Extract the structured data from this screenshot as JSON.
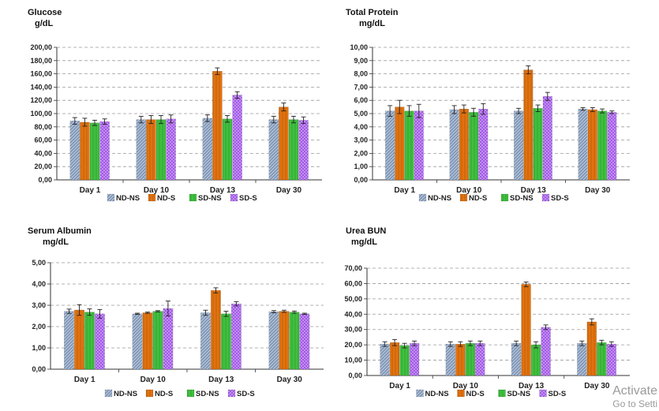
{
  "colors": {
    "ND-NS": "#7f97b8",
    "ND-S": "#e2720f",
    "SD-NS": "#3fc03f",
    "SD-S": "#9d4ee6"
  },
  "legend": [
    "ND-NS",
    "ND-S",
    "SD-NS",
    "SD-S"
  ],
  "chart_data": [
    {
      "type": "bar",
      "title": "Glucose",
      "ylabel": "g/dL",
      "categories": [
        "Day 1",
        "Day 10",
        "Day 13",
        "Day 30"
      ],
      "ylim": [
        0,
        200
      ],
      "yticks": [
        "0,00",
        "20,00",
        "40,00",
        "60,00",
        "80,00",
        "100,00",
        "120,00",
        "140,00",
        "160,00",
        "180,00",
        "200,00"
      ],
      "series": [
        {
          "name": "ND-NS",
          "values": [
            89,
            91,
            93,
            91
          ],
          "errors": [
            5,
            5,
            5,
            5
          ]
        },
        {
          "name": "ND-S",
          "values": [
            87,
            91,
            164,
            110
          ],
          "errors": [
            6,
            6,
            5,
            6
          ]
        },
        {
          "name": "SD-NS",
          "values": [
            86,
            91,
            92,
            91
          ],
          "errors": [
            4,
            6,
            5,
            5
          ]
        },
        {
          "name": "SD-S",
          "values": [
            88,
            92,
            128,
            90
          ],
          "errors": [
            4,
            6,
            5,
            5
          ]
        }
      ],
      "grid": true,
      "legend_position": "bottom"
    },
    {
      "type": "bar",
      "title": "Total Protein",
      "ylabel": "mg/dL",
      "categories": [
        "Day 1",
        "Day 10",
        "Day 13",
        "Day 30"
      ],
      "ylim": [
        0,
        10
      ],
      "yticks": [
        "0,00",
        "1,00",
        "2,00",
        "3,00",
        "4,00",
        "5,00",
        "6,00",
        "7,00",
        "8,00",
        "9,00",
        "10,00"
      ],
      "series": [
        {
          "name": "ND-NS",
          "values": [
            5.2,
            5.3,
            5.2,
            5.35
          ],
          "errors": [
            0.4,
            0.3,
            0.2,
            0.1
          ]
        },
        {
          "name": "ND-S",
          "values": [
            5.5,
            5.35,
            8.3,
            5.3
          ],
          "errors": [
            0.5,
            0.3,
            0.3,
            0.15
          ]
        },
        {
          "name": "SD-NS",
          "values": [
            5.2,
            5.1,
            5.4,
            5.2
          ],
          "errors": [
            0.4,
            0.3,
            0.25,
            0.15
          ]
        },
        {
          "name": "SD-S",
          "values": [
            5.2,
            5.35,
            6.3,
            5.1
          ],
          "errors": [
            0.5,
            0.4,
            0.3,
            0.1
          ]
        }
      ],
      "grid": true,
      "legend_position": "bottom"
    },
    {
      "type": "bar",
      "title": "Serum Albumin",
      "ylabel": "mg/dL",
      "categories": [
        "Day 1",
        "Day 10",
        "Day 13",
        "Day 30"
      ],
      "ylim": [
        0,
        5
      ],
      "yticks": [
        "0,00",
        "1,00",
        "2,00",
        "3,00",
        "4,00",
        "5,00"
      ],
      "series": [
        {
          "name": "ND-NS",
          "values": [
            2.72,
            2.6,
            2.65,
            2.7
          ],
          "errors": [
            0.1,
            0.03,
            0.12,
            0.05
          ]
        },
        {
          "name": "ND-S",
          "values": [
            2.78,
            2.65,
            3.7,
            2.72
          ],
          "errors": [
            0.25,
            0.03,
            0.12,
            0.05
          ]
        },
        {
          "name": "SD-NS",
          "values": [
            2.68,
            2.72,
            2.6,
            2.68
          ],
          "errors": [
            0.15,
            0.03,
            0.12,
            0.05
          ]
        },
        {
          "name": "SD-S",
          "values": [
            2.6,
            2.85,
            3.07,
            2.6
          ],
          "errors": [
            0.2,
            0.35,
            0.1,
            0.03
          ]
        }
      ],
      "grid": true,
      "legend_position": "bottom"
    },
    {
      "type": "bar",
      "title": "Urea BUN",
      "ylabel": "mg/dL",
      "categories": [
        "Day 1",
        "Day 10",
        "Day 13",
        "Day 30"
      ],
      "ylim": [
        0,
        70
      ],
      "yticks": [
        "0,00",
        "10,00",
        "20,00",
        "30,00",
        "40,00",
        "50,00",
        "60,00",
        "70,00"
      ],
      "series": [
        {
          "name": "ND-NS",
          "values": [
            20.5,
            20.5,
            21,
            21
          ],
          "errors": [
            1.5,
            1.5,
            1.5,
            1.5
          ]
        },
        {
          "name": "ND-S",
          "values": [
            21.5,
            20.5,
            59.5,
            35
          ],
          "errors": [
            2,
            1.5,
            1.5,
            2
          ]
        },
        {
          "name": "SD-NS",
          "values": [
            19.5,
            21,
            20,
            21.5
          ],
          "errors": [
            1.5,
            1.5,
            2,
            1.5
          ]
        },
        {
          "name": "SD-S",
          "values": [
            21,
            21,
            31.5,
            20.5
          ],
          "errors": [
            1.5,
            1.5,
            1.5,
            1.5
          ]
        }
      ],
      "grid": true,
      "legend_position": "bottom"
    }
  ],
  "watermark": {
    "line1": "Activate",
    "line2": "Go to Setti"
  }
}
